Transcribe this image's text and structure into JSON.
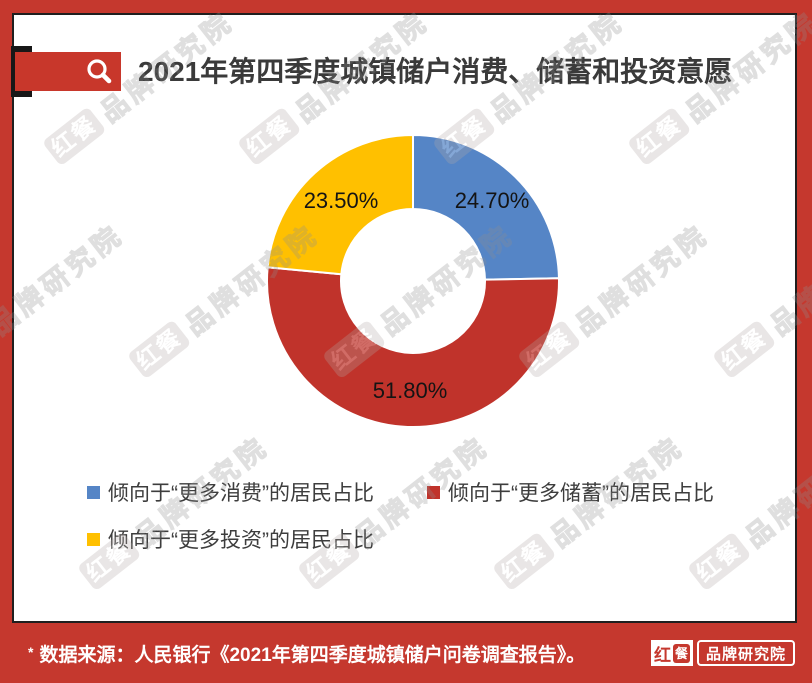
{
  "header": {
    "title": "2021年第四季度城镇储户消费、储蓄和投资意愿"
  },
  "chart_data": {
    "type": "donut",
    "title": "2021年第四季度城镇储户消费、储蓄和投资意愿",
    "unit": "%",
    "start_angle_deg": 0,
    "direction": "clockwise",
    "inner_radius_ratio": 0.49,
    "legend_position": "bottom-left",
    "slices": [
      {
        "name": "倾向于“更多消费”的居民占比",
        "value": 24.7,
        "label": "24.70%",
        "color": "#5585C6"
      },
      {
        "name": "倾向于“更多储蓄”的居民占比",
        "value": 51.8,
        "label": "51.80%",
        "color": "#C0332B"
      },
      {
        "name": "倾向于“更多投资”的居民占比",
        "value": 23.5,
        "label": "23.50%",
        "color": "#FFC000"
      }
    ]
  },
  "footer": {
    "note_marker": "*",
    "source_text": "数据来源：人民银行《2021年第四季度城镇储户问卷调查报告》。",
    "logo": {
      "brand_char_1": "红",
      "brand_char_2": "餐",
      "suffix": "品牌研究院"
    }
  },
  "watermark": {
    "badge": "红餐",
    "text": "品牌研究院"
  },
  "colors": {
    "frame_red": "#C5382E",
    "ribbon_red": "#C8372B",
    "panel_border": "#1F1F1F",
    "slice_blue": "#5585C6",
    "slice_red": "#C0332B",
    "slice_yellow": "#FFC000"
  }
}
